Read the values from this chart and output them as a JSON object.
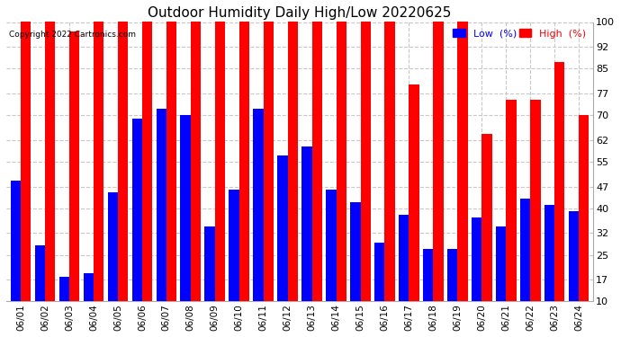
{
  "title": "Outdoor Humidity Daily High/Low 20220625",
  "copyright": "Copyright 2022 Cartronics.com",
  "legend_low": "Low  (%)",
  "legend_high": "High  (%)",
  "dates": [
    "06/01",
    "06/02",
    "06/03",
    "06/04",
    "06/05",
    "06/06",
    "06/07",
    "06/08",
    "06/09",
    "06/10",
    "06/11",
    "06/12",
    "06/13",
    "06/14",
    "06/15",
    "06/16",
    "06/17",
    "06/18",
    "06/19",
    "06/20",
    "06/21",
    "06/22",
    "06/23",
    "06/24"
  ],
  "high": [
    100,
    100,
    97,
    100,
    100,
    100,
    100,
    100,
    100,
    100,
    100,
    100,
    100,
    100,
    100,
    100,
    80,
    100,
    100,
    64,
    75,
    75,
    87,
    70
  ],
  "low": [
    49,
    28,
    18,
    19,
    45,
    69,
    72,
    70,
    34,
    46,
    72,
    57,
    60,
    46,
    42,
    29,
    38,
    27,
    27,
    37,
    34,
    43,
    41,
    39
  ],
  "high_color": "#ff0000",
  "low_color": "#0000ff",
  "bg_color": "#ffffff",
  "ylim_min": 10,
  "ylim_max": 100,
  "yticks": [
    10,
    17,
    25,
    32,
    40,
    47,
    55,
    62,
    70,
    77,
    85,
    92,
    100
  ],
  "grid_color": "#c8c8c8",
  "bar_width": 0.42,
  "title_fontsize": 11,
  "tick_fontsize": 8
}
